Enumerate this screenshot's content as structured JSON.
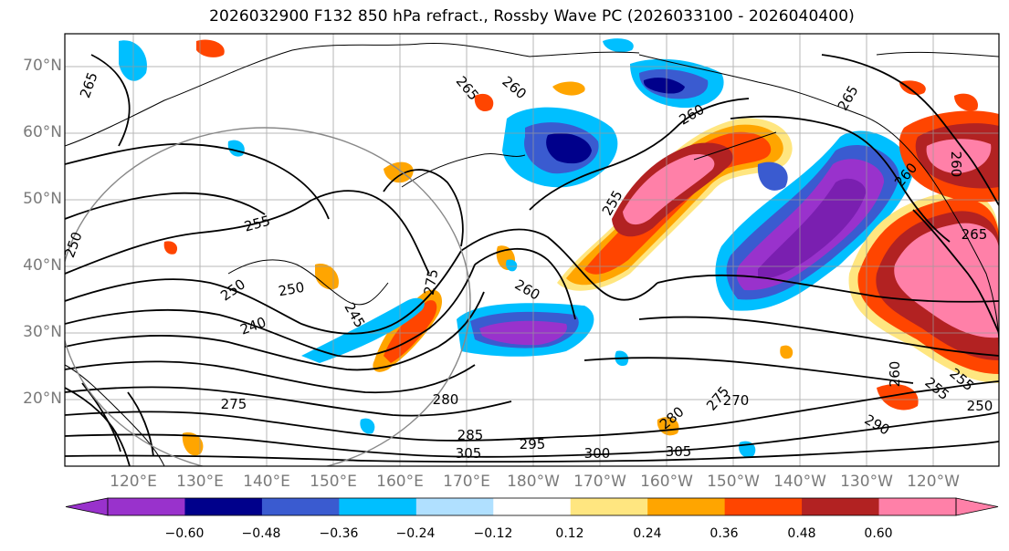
{
  "title": "2026032900 F132 850 hPa refract., Rossby Wave PC (2026033100 - 2026040400)",
  "lat_labels": [
    "70°N",
    "60°N",
    "50°N",
    "40°N",
    "30°N",
    "20°N"
  ],
  "lon_labels": [
    "120°E",
    "130°E",
    "140°E",
    "150°E",
    "160°E",
    "170°E",
    "180°W",
    "170°W",
    "160°W",
    "150°W",
    "140°W",
    "130°W",
    "120°W"
  ],
  "colorbar": {
    "colors": [
      "#9932cc",
      "#00008b",
      "#3a5bd0",
      "#00bfff",
      "#b0e0ff",
      "#ffffff",
      "#ffe680",
      "#ffa500",
      "#ff4500",
      "#b22222",
      "#ff80a8"
    ],
    "ticks": [
      "−0.60",
      "−0.48",
      "−0.36",
      "−0.24",
      "−0.12",
      "0.12",
      "0.24",
      "0.36",
      "0.48",
      "0.60"
    ],
    "levels": [
      -0.6,
      -0.48,
      -0.36,
      -0.24,
      -0.12,
      0.12,
      0.24,
      0.36,
      0.48,
      0.6
    ]
  },
  "contour_labels": [
    "265",
    "260",
    "265",
    "260",
    "255",
    "260",
    "250",
    "255",
    "250",
    "245",
    "250",
    "240",
    "275",
    "255",
    "260",
    "280",
    "285",
    "295",
    "300",
    "305",
    "305",
    "275",
    "280",
    "270",
    "255",
    "260",
    "265",
    "250",
    "260",
    "265",
    "275",
    "290"
  ],
  "colors": {
    "contour": "#000000",
    "grid": "#9a9a9a",
    "axis_label": "#7a7a7a"
  }
}
